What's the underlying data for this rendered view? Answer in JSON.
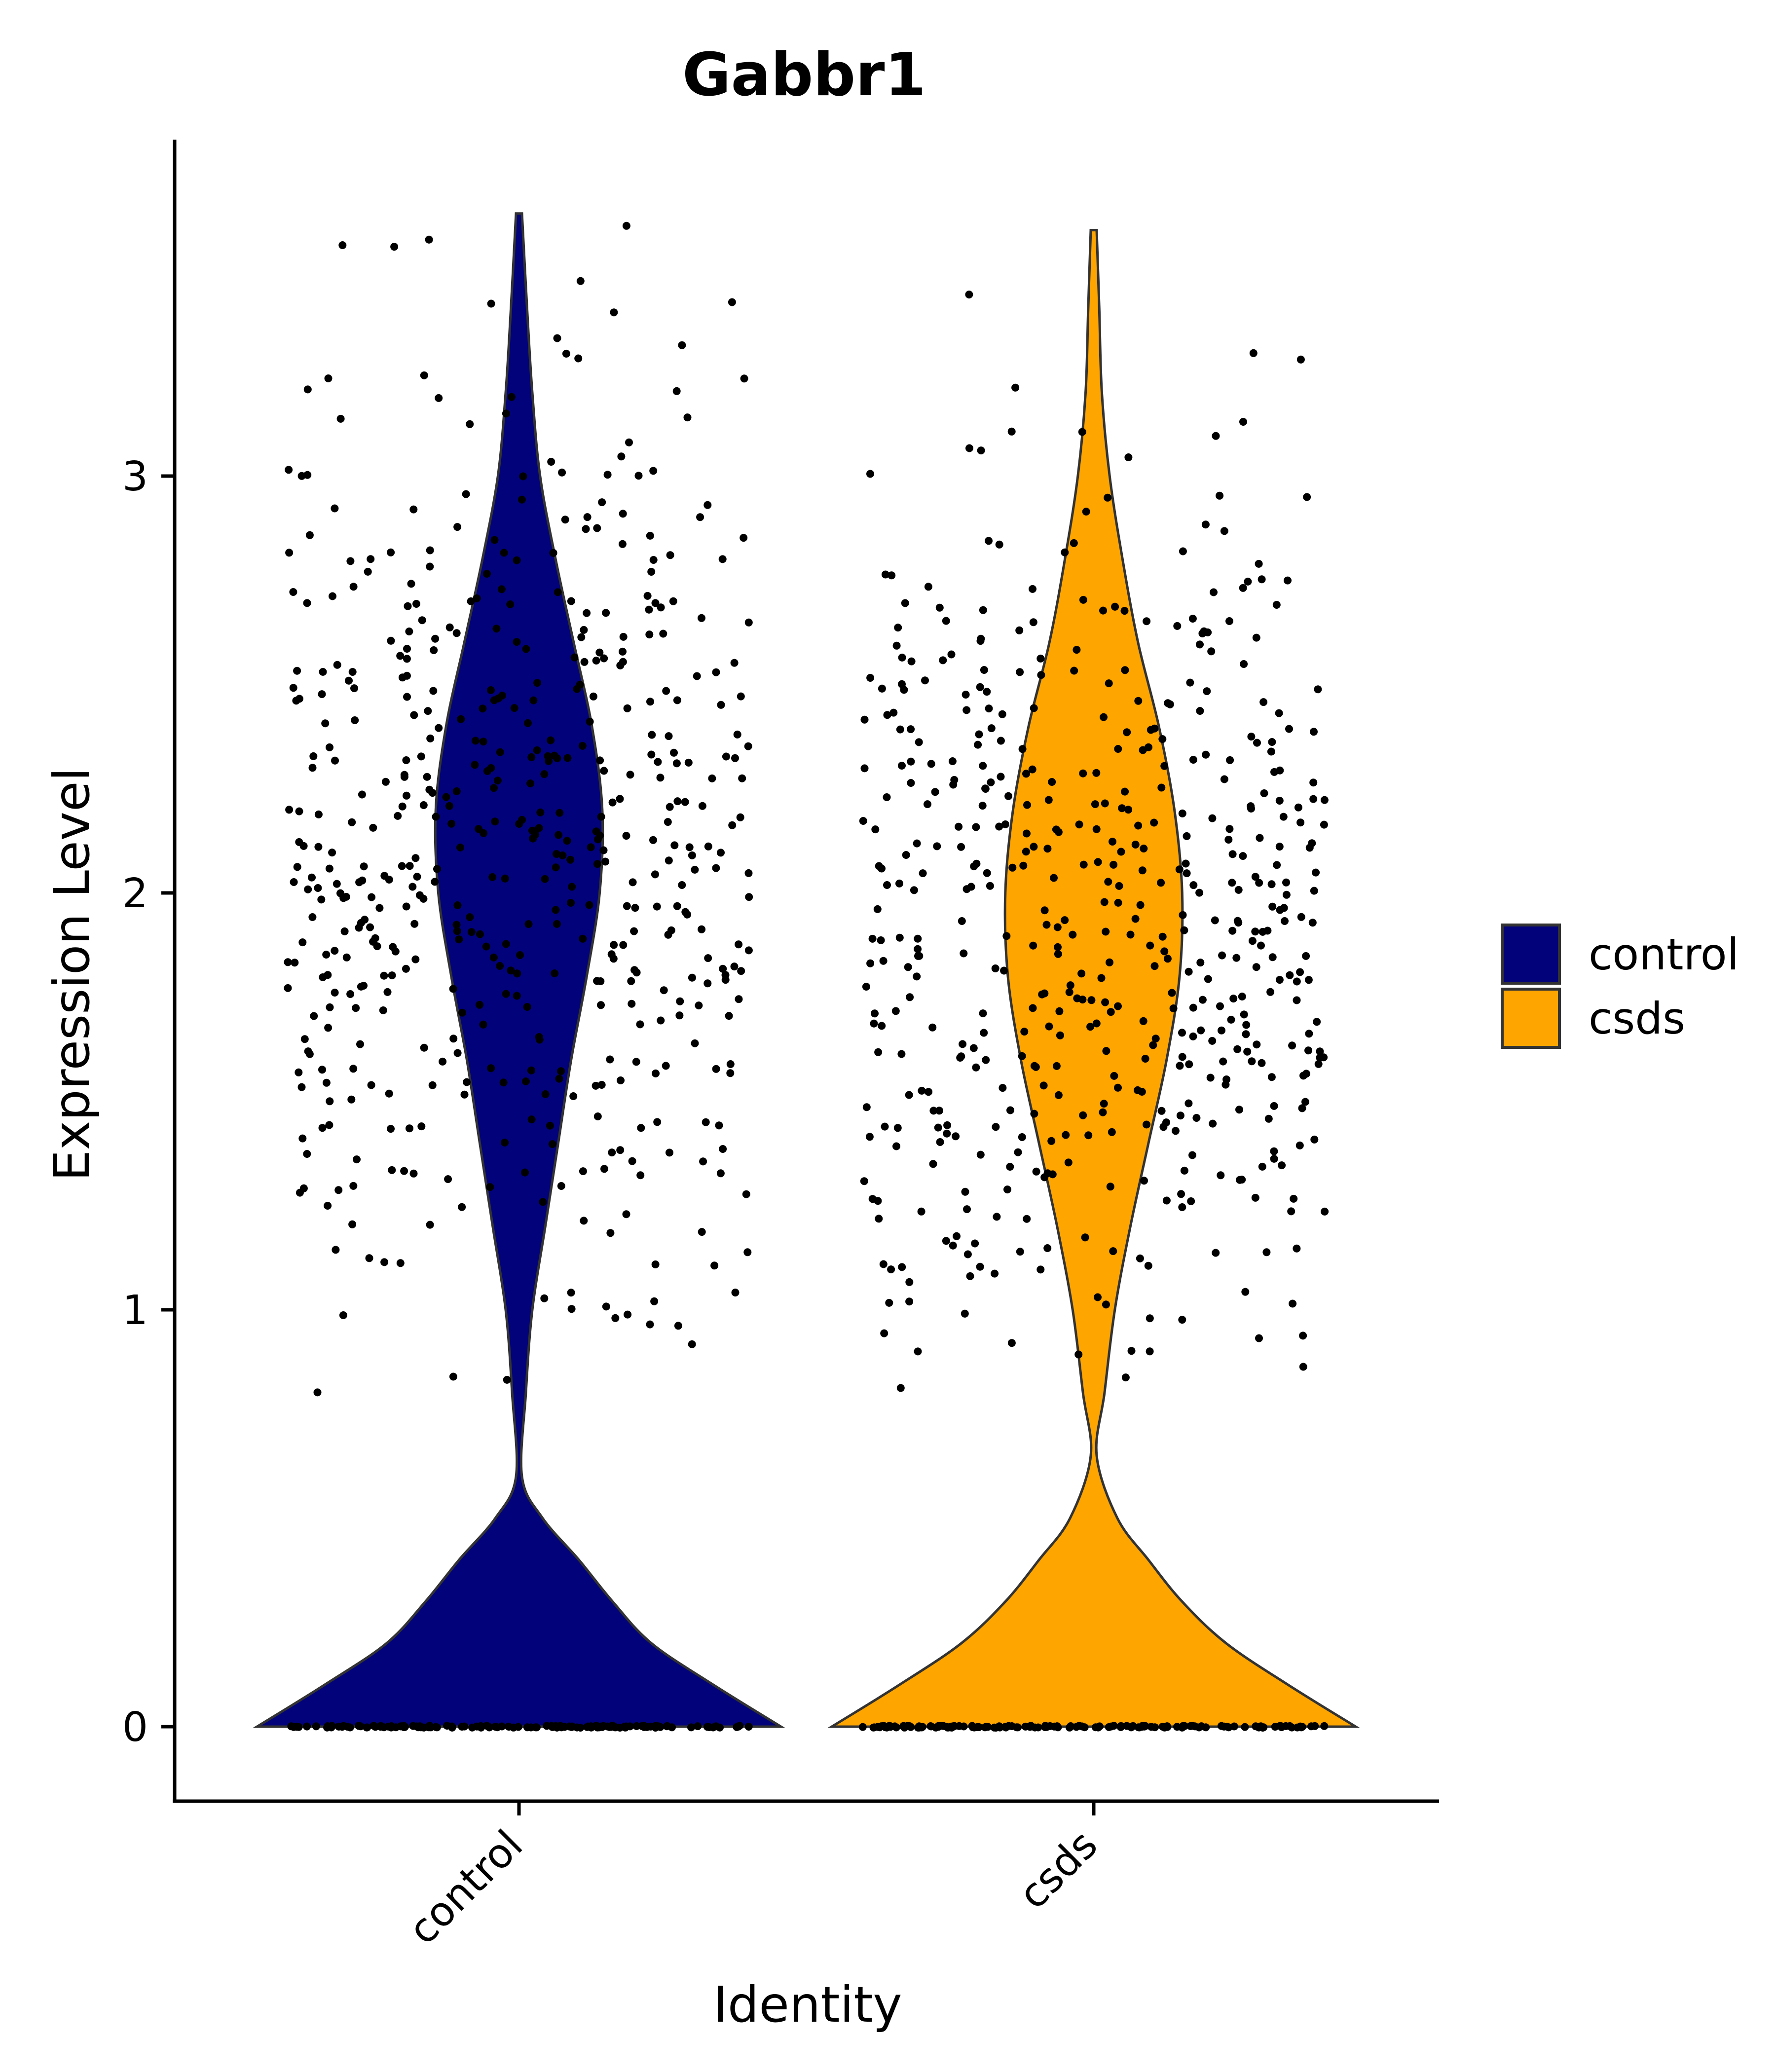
{
  "chart_data": {
    "type": "violin",
    "title": "Gabbr1",
    "xlabel": "Identity",
    "ylabel": "Expression Level",
    "categories": [
      "control",
      "csds"
    ],
    "yticks": [
      "0",
      "1",
      "2",
      "3"
    ],
    "ylim": [
      -0.18,
      3.83
    ],
    "legend": {
      "position": "right",
      "entries": [
        {
          "label": "control",
          "color": "#02027A"
        },
        {
          "label": "csds",
          "color": "#FFA500"
        }
      ]
    },
    "series": [
      {
        "name": "control",
        "color": "#02027A",
        "max": 3.63,
        "density": [
          [
            0,
            1.0
          ],
          [
            0.1,
            0.74
          ],
          [
            0.2,
            0.5
          ],
          [
            0.3,
            0.35
          ],
          [
            0.4,
            0.22
          ],
          [
            0.5,
            0.08
          ],
          [
            0.6,
            0.0
          ],
          [
            0.8,
            0.015
          ],
          [
            1.0,
            0.04
          ],
          [
            1.2,
            0.09
          ],
          [
            1.4,
            0.14
          ],
          [
            1.6,
            0.19
          ],
          [
            1.8,
            0.25
          ],
          [
            2.0,
            0.3
          ],
          [
            2.2,
            0.31
          ],
          [
            2.4,
            0.27
          ],
          [
            2.6,
            0.2
          ],
          [
            2.8,
            0.13
          ],
          [
            3.0,
            0.07
          ],
          [
            3.2,
            0.04
          ],
          [
            3.4,
            0.02
          ],
          [
            3.63,
            0.0
          ]
        ]
      },
      {
        "name": "csds",
        "color": "#FFA500",
        "max": 3.59,
        "density": [
          [
            0,
            1.0
          ],
          [
            0.1,
            0.74
          ],
          [
            0.2,
            0.5
          ],
          [
            0.3,
            0.33
          ],
          [
            0.4,
            0.2
          ],
          [
            0.5,
            0.08
          ],
          [
            0.65,
            0.0
          ],
          [
            0.8,
            0.03
          ],
          [
            1.0,
            0.07
          ],
          [
            1.2,
            0.13
          ],
          [
            1.4,
            0.2
          ],
          [
            1.6,
            0.27
          ],
          [
            1.8,
            0.32
          ],
          [
            2.0,
            0.33
          ],
          [
            2.2,
            0.3
          ],
          [
            2.4,
            0.24
          ],
          [
            2.6,
            0.16
          ],
          [
            2.8,
            0.1
          ],
          [
            3.0,
            0.05
          ],
          [
            3.2,
            0.02
          ],
          [
            3.4,
            0.01
          ],
          [
            3.59,
            0.0
          ]
        ]
      }
    ]
  }
}
